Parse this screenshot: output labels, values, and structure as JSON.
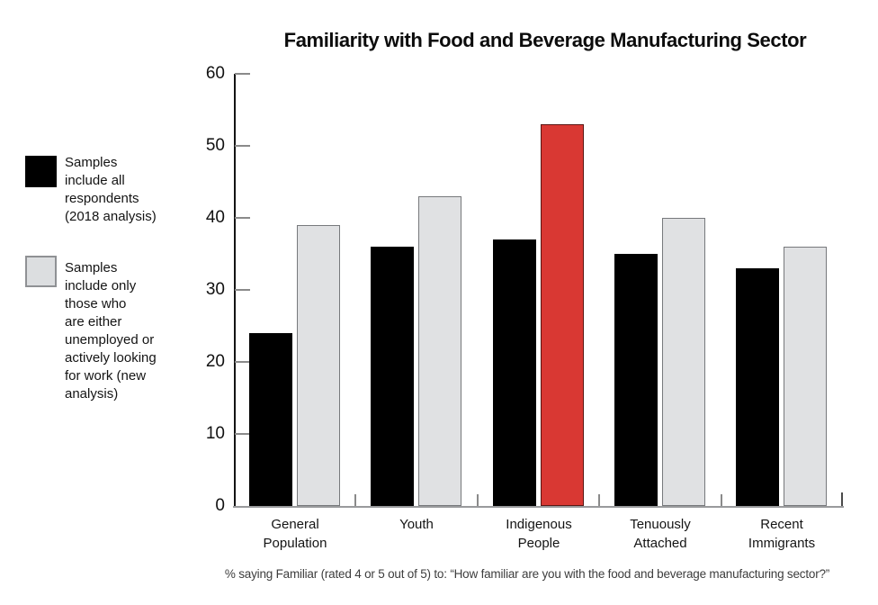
{
  "title": "Familiarity with Food and Beverage Manufacturing Sector",
  "footnote": "% saying Familiar (rated 4 or 5 out of 5) to: “How familiar are you with the food and beverage manufacturing sector?”",
  "legend": {
    "items": [
      {
        "id": "all-respondents",
        "swatch_fill": "#000000",
        "swatch_border": "#000000",
        "label": "Samples\ninclude all\nrespondents\n(2018 analysis)"
      },
      {
        "id": "unemployed-only",
        "swatch_fill": "#dcdee0",
        "swatch_border": "#8f9194",
        "label": "Samples\ninclude only\nthose who\nare either\nunemployed or\nactively looking\nfor work (new\nanalysis)"
      }
    ]
  },
  "colors": {
    "black_bar": "#000000",
    "gray_bar_fill": "#e0e1e3",
    "gray_bar_border": "#77797c",
    "highlight_bar_fill": "#d93833",
    "highlight_bar_border": "#5a1613",
    "axis": "#141414",
    "baseline": "#999a9c",
    "tick": "#8a8a8a"
  },
  "chart_data": {
    "type": "bar",
    "title": "Familiarity with Food and Beverage Manufacturing Sector",
    "categories": [
      "General\nPopulation",
      "Youth",
      "Indigenous\nPeople",
      "Tenuously\nAttached",
      "Recent\nImmigrants"
    ],
    "series": [
      {
        "name": "Samples include all respondents (2018 analysis)",
        "values": [
          24,
          36,
          37,
          35,
          33
        ],
        "fill": "#000000",
        "border": "#000000"
      },
      {
        "name": "Samples include only those who are either unemployed or actively looking for work (new analysis)",
        "values": [
          39,
          43,
          53,
          40,
          36
        ],
        "fill": "#e0e1e3",
        "border": "#77797c",
        "overrides": [
          {
            "index": 2,
            "fill": "#d93833",
            "border": "#5a1613"
          }
        ]
      }
    ],
    "xlabel": "",
    "ylabel": "",
    "ylim": [
      0,
      60
    ],
    "yticks": [
      0,
      10,
      20,
      30,
      40,
      50,
      60
    ],
    "grid": false,
    "legend_position": "left",
    "highlight_note": "Indigenous People second-series bar is highlighted red"
  }
}
